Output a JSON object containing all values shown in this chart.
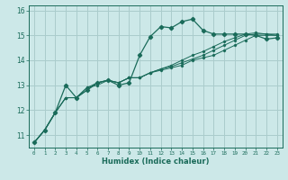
{
  "xlabel": "Humidex (Indice chaleur)",
  "ylabel": "",
  "bg_color": "#cce8e8",
  "grid_color": "#aacccc",
  "line_color": "#1a6b5a",
  "xlim": [
    -0.5,
    23.5
  ],
  "ylim": [
    10.5,
    16.2
  ],
  "xticks": [
    0,
    1,
    2,
    3,
    4,
    5,
    6,
    7,
    8,
    9,
    10,
    11,
    12,
    13,
    14,
    15,
    16,
    17,
    18,
    19,
    20,
    21,
    22,
    23
  ],
  "yticks": [
    11,
    12,
    13,
    14,
    15,
    16
  ],
  "series": [
    [
      10.7,
      11.2,
      11.9,
      13.0,
      12.5,
      12.8,
      13.1,
      13.2,
      13.0,
      13.1,
      14.2,
      14.95,
      15.35,
      15.3,
      15.55,
      15.65,
      15.2,
      15.05,
      15.05,
      15.05,
      15.05,
      15.0,
      14.85,
      14.9
    ],
    [
      10.7,
      11.2,
      11.9,
      12.5,
      12.5,
      12.8,
      13.1,
      13.2,
      13.1,
      13.3,
      13.3,
      13.5,
      13.6,
      13.7,
      13.8,
      14.0,
      14.1,
      14.2,
      14.4,
      14.6,
      14.8,
      15.0,
      15.0,
      15.0
    ],
    [
      10.7,
      11.2,
      11.9,
      12.5,
      12.5,
      12.9,
      13.1,
      13.2,
      13.1,
      13.3,
      13.3,
      13.5,
      13.65,
      13.75,
      13.9,
      14.05,
      14.2,
      14.4,
      14.6,
      14.8,
      15.0,
      15.05,
      15.05,
      15.05
    ],
    [
      10.7,
      11.2,
      11.9,
      12.5,
      12.5,
      12.9,
      13.0,
      13.2,
      13.1,
      13.3,
      13.3,
      13.5,
      13.65,
      13.8,
      14.0,
      14.2,
      14.35,
      14.55,
      14.75,
      14.9,
      15.05,
      15.1,
      15.05,
      15.0
    ]
  ]
}
